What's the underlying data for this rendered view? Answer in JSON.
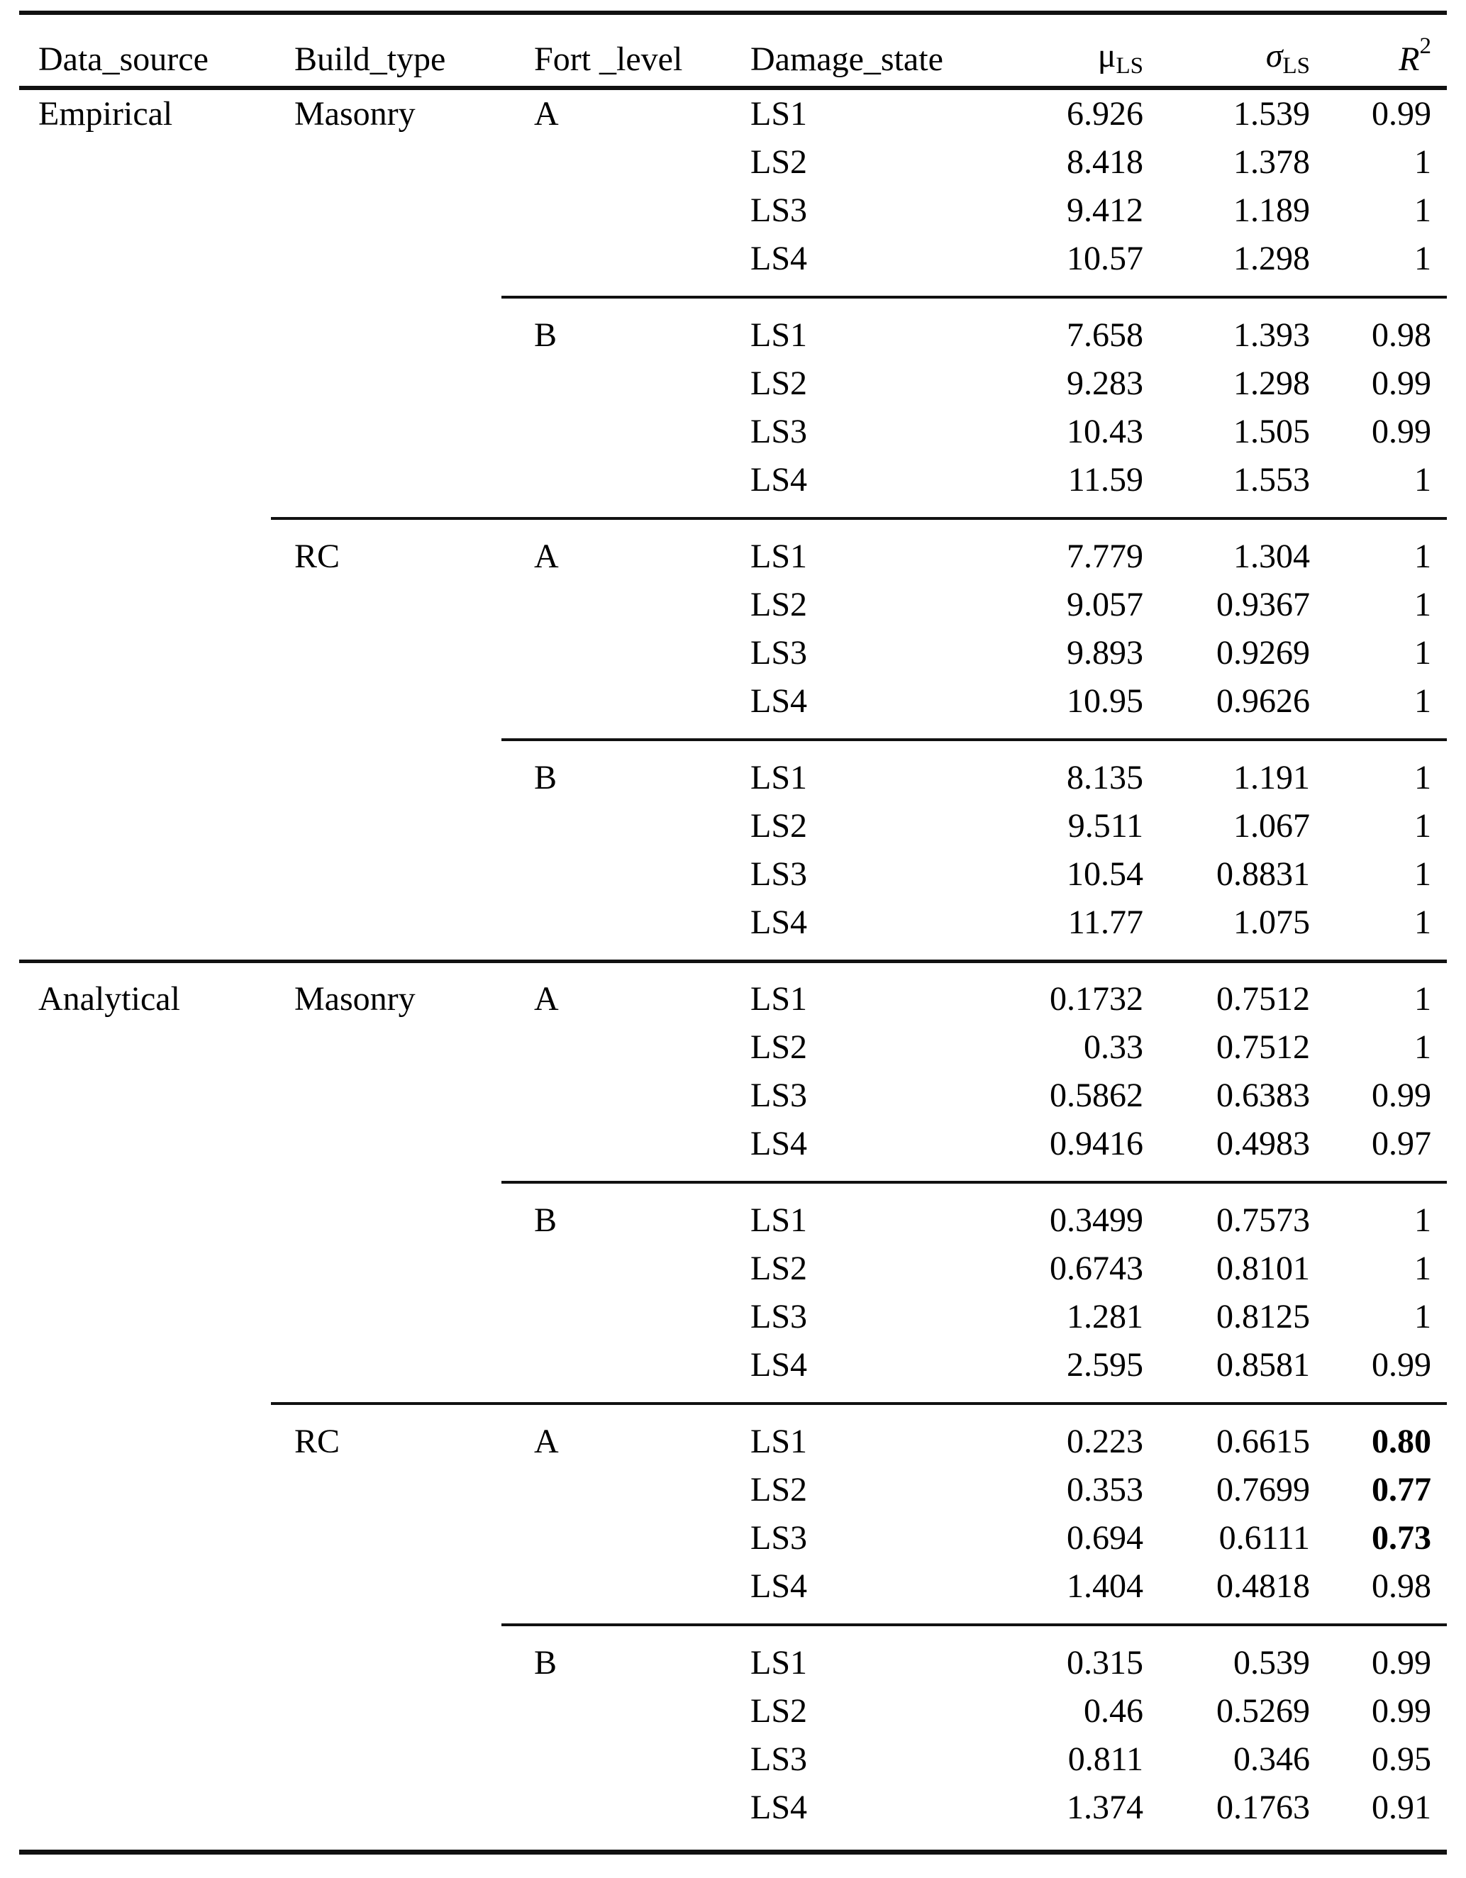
{
  "colors": {
    "background": "#ffffff",
    "text": "#000000",
    "rule": "#111111"
  },
  "table": {
    "header": {
      "data_source": "Data_source",
      "build_type": "Build_type",
      "fort_level": "Fort _level",
      "damage_state": "Damage_state",
      "mu_symbol": "μ",
      "mu_sub": "LS",
      "sigma_symbol": "σ",
      "sigma_sub": "LS",
      "r_symbol": "R",
      "r_sup": "2"
    },
    "groups": [
      {
        "data_source": "Empirical",
        "build_type": "Masonry",
        "fort_level": "A",
        "rule_before": "none",
        "rows": [
          {
            "damage_state": "LS1",
            "mu": "6.926",
            "sigma": "1.539",
            "r2": "0.99",
            "r2_bold": false
          },
          {
            "damage_state": "LS2",
            "mu": "8.418",
            "sigma": "1.378",
            "r2": "1",
            "r2_bold": false
          },
          {
            "damage_state": "LS3",
            "mu": "9.412",
            "sigma": "1.189",
            "r2": "1",
            "r2_bold": false
          },
          {
            "damage_state": "LS4",
            "mu": "10.57",
            "sigma": "1.298",
            "r2": "1",
            "r2_bold": false
          }
        ]
      },
      {
        "data_source": "",
        "build_type": "",
        "fort_level": "B",
        "rule_before": "fort",
        "rows": [
          {
            "damage_state": "LS1",
            "mu": "7.658",
            "sigma": "1.393",
            "r2": "0.98",
            "r2_bold": false
          },
          {
            "damage_state": "LS2",
            "mu": "9.283",
            "sigma": "1.298",
            "r2": "0.99",
            "r2_bold": false
          },
          {
            "damage_state": "LS3",
            "mu": "10.43",
            "sigma": "1.505",
            "r2": "0.99",
            "r2_bold": false
          },
          {
            "damage_state": "LS4",
            "mu": "11.59",
            "sigma": "1.553",
            "r2": "1",
            "r2_bold": false
          }
        ]
      },
      {
        "data_source": "",
        "build_type": "RC",
        "fort_level": "A",
        "rule_before": "build",
        "rows": [
          {
            "damage_state": "LS1",
            "mu": "7.779",
            "sigma": "1.304",
            "r2": "1",
            "r2_bold": false
          },
          {
            "damage_state": "LS2",
            "mu": "9.057",
            "sigma": "0.9367",
            "r2": "1",
            "r2_bold": false
          },
          {
            "damage_state": "LS3",
            "mu": "9.893",
            "sigma": "0.9269",
            "r2": "1",
            "r2_bold": false
          },
          {
            "damage_state": "LS4",
            "mu": "10.95",
            "sigma": "0.9626",
            "r2": "1",
            "r2_bold": false
          }
        ]
      },
      {
        "data_source": "",
        "build_type": "",
        "fort_level": "B",
        "rule_before": "fort",
        "rows": [
          {
            "damage_state": "LS1",
            "mu": "8.135",
            "sigma": "1.191",
            "r2": "1",
            "r2_bold": false
          },
          {
            "damage_state": "LS2",
            "mu": "9.511",
            "sigma": "1.067",
            "r2": "1",
            "r2_bold": false
          },
          {
            "damage_state": "LS3",
            "mu": "10.54",
            "sigma": "0.8831",
            "r2": "1",
            "r2_bold": false
          },
          {
            "damage_state": "LS4",
            "mu": "11.77",
            "sigma": "1.075",
            "r2": "1",
            "r2_bold": false
          }
        ]
      },
      {
        "data_source": "Analytical",
        "build_type": "Masonry",
        "fort_level": "A",
        "rule_before": "full",
        "rows": [
          {
            "damage_state": "LS1",
            "mu": "0.1732",
            "sigma": "0.7512",
            "r2": "1",
            "r2_bold": false
          },
          {
            "damage_state": "LS2",
            "mu": "0.33",
            "sigma": "0.7512",
            "r2": "1",
            "r2_bold": false
          },
          {
            "damage_state": "LS3",
            "mu": "0.5862",
            "sigma": "0.6383",
            "r2": "0.99",
            "r2_bold": false
          },
          {
            "damage_state": "LS4",
            "mu": "0.9416",
            "sigma": "0.4983",
            "r2": "0.97",
            "r2_bold": false
          }
        ]
      },
      {
        "data_source": "",
        "build_type": "",
        "fort_level": "B",
        "rule_before": "fort",
        "rows": [
          {
            "damage_state": "LS1",
            "mu": "0.3499",
            "sigma": "0.7573",
            "r2": "1",
            "r2_bold": false
          },
          {
            "damage_state": "LS2",
            "mu": "0.6743",
            "sigma": "0.8101",
            "r2": "1",
            "r2_bold": false
          },
          {
            "damage_state": "LS3",
            "mu": "1.281",
            "sigma": "0.8125",
            "r2": "1",
            "r2_bold": false
          },
          {
            "damage_state": "LS4",
            "mu": "2.595",
            "sigma": "0.8581",
            "r2": "0.99",
            "r2_bold": false
          }
        ]
      },
      {
        "data_source": "",
        "build_type": "RC",
        "fort_level": "A",
        "rule_before": "build",
        "rows": [
          {
            "damage_state": "LS1",
            "mu": "0.223",
            "sigma": "0.6615",
            "r2": "0.80",
            "r2_bold": true
          },
          {
            "damage_state": "LS2",
            "mu": "0.353",
            "sigma": "0.7699",
            "r2": "0.77",
            "r2_bold": true
          },
          {
            "damage_state": "LS3",
            "mu": "0.694",
            "sigma": "0.6111",
            "r2": "0.73",
            "r2_bold": true
          },
          {
            "damage_state": "LS4",
            "mu": "1.404",
            "sigma": "0.4818",
            "r2": "0.98",
            "r2_bold": false
          }
        ]
      },
      {
        "data_source": "",
        "build_type": "",
        "fort_level": "B",
        "rule_before": "fort",
        "rows": [
          {
            "damage_state": "LS1",
            "mu": "0.315",
            "sigma": "0.539",
            "r2": "0.99",
            "r2_bold": false
          },
          {
            "damage_state": "LS2",
            "mu": "0.46",
            "sigma": "0.5269",
            "r2": "0.99",
            "r2_bold": false
          },
          {
            "damage_state": "LS3",
            "mu": "0.811",
            "sigma": "0.346",
            "r2": "0.95",
            "r2_bold": false
          },
          {
            "damage_state": "LS4",
            "mu": "1.374",
            "sigma": "0.1763",
            "r2": "0.91",
            "r2_bold": false
          }
        ]
      }
    ]
  }
}
